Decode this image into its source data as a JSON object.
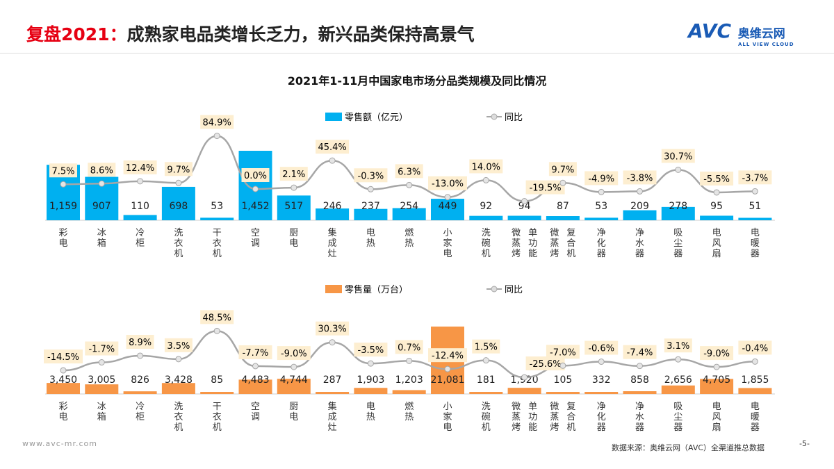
{
  "header": {
    "title_prefix": "复盘2021：",
    "title_rest": "成熟家电品类增长乏力，新兴品类保持高景气",
    "logo": "AVC",
    "logo_cn": "奥维云网",
    "logo_sub": "ALL VIEW CLOUD"
  },
  "footer": {
    "url": "www.avc-mr.com",
    "source": "数据来源：奥维云网（AVC）全渠道推总数据",
    "page": "-5-"
  },
  "colors": {
    "bar_top": "#00b0f0",
    "bar_bottom": "#f79646",
    "line": "#a6a6a6",
    "label_bg": "#fdeed0"
  },
  "chart_data": [
    {
      "type": "bar+line",
      "title": "2021年1-11月中国家电市场分品类规模及同比情况",
      "categories": [
        "彩电",
        "冰箱",
        "冷柜",
        "洗衣机",
        "干衣机",
        "空调",
        "厨电",
        "集成灶",
        "电热",
        "燃热",
        "小家电",
        "洗碗机",
        "单功能微蒸烤",
        "复合机微蒸烤",
        "净化器",
        "净水器",
        "吸尘器",
        "电风扇",
        "电暖器"
      ],
      "series": [
        {
          "name": "零售额（亿元）",
          "values": [
            1159,
            907,
            110,
            698,
            53,
            1452,
            517,
            246,
            237,
            254,
            449,
            92,
            94,
            87,
            53,
            209,
            278,
            95,
            51
          ]
        },
        {
          "name": "同比",
          "unit": "%",
          "values": [
            7.5,
            8.6,
            12.4,
            9.7,
            84.9,
            0.0,
            2.1,
            45.4,
            -0.3,
            6.3,
            -13.0,
            14.0,
            -19.5,
            9.7,
            -4.9,
            -3.8,
            30.7,
            -5.5,
            -3.7
          ]
        }
      ],
      "legend": "top"
    },
    {
      "type": "bar+line",
      "categories": [
        "彩电",
        "冰箱",
        "冷柜",
        "洗衣机",
        "干衣机",
        "空调",
        "厨电",
        "集成灶",
        "电热",
        "燃热",
        "小家电",
        "洗碗机",
        "单功能微蒸烤",
        "复合机微蒸烤",
        "净化器",
        "净水器",
        "吸尘器",
        "电风扇",
        "电暖器"
      ],
      "series": [
        {
          "name": "零售量（万台）",
          "values": [
            3450,
            3005,
            826,
            3428,
            85,
            4483,
            4744,
            287,
            1903,
            1203,
            21081,
            181,
            1920,
            105,
            332,
            858,
            2656,
            4705,
            1855
          ]
        },
        {
          "name": "同比",
          "unit": "%",
          "values": [
            -14.5,
            -1.7,
            8.9,
            3.5,
            48.5,
            -7.7,
            -9.0,
            30.3,
            -3.5,
            0.7,
            -12.4,
            1.5,
            -25.6,
            -7.0,
            -0.6,
            -7.4,
            3.1,
            -9.0,
            -0.4
          ]
        }
      ],
      "legend": "top"
    }
  ]
}
